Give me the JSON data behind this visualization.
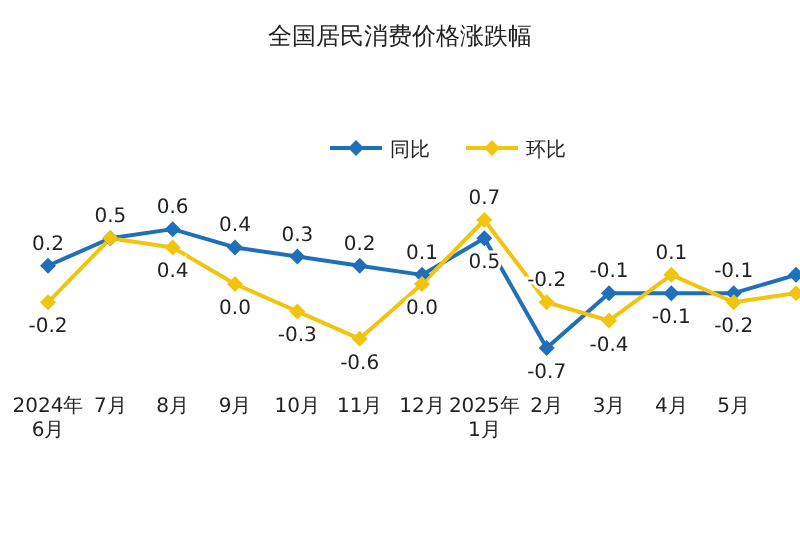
{
  "chart_data": {
    "type": "line",
    "title": "全国居民消费价格涨跌幅",
    "categories": [
      "2024年\n6月",
      "7月",
      "8月",
      "9月",
      "10月",
      "11月",
      "12月",
      "2025年\n1月",
      "2月",
      "3月",
      "4月",
      "5月",
      null
    ],
    "series": [
      {
        "name": "同比",
        "color": "#1f70b8",
        "values": [
          0.2,
          0.5,
          0.6,
          0.4,
          0.3,
          0.2,
          0.1,
          0.5,
          -0.7,
          -0.1,
          -0.1,
          -0.1,
          0.1
        ],
        "value_labels": [
          "0.2",
          "0.5",
          "0.6",
          "0.4",
          "0.3",
          "0.2",
          "0.1",
          "0.5",
          "-0.7",
          "-0.1",
          "-0.1",
          "-0.1",
          null
        ]
      },
      {
        "name": "环比",
        "color": "#f2c40f",
        "values": [
          -0.2,
          0.5,
          0.4,
          0.0,
          -0.3,
          -0.6,
          0.0,
          0.7,
          -0.2,
          -0.4,
          0.1,
          -0.2,
          -0.1
        ],
        "value_labels": [
          "-0.2",
          null,
          "0.4",
          "0.0",
          "-0.3",
          "-0.6",
          "0.0",
          "0.7",
          "-0.2",
          "-0.4",
          "0.1",
          "-0.2",
          null
        ]
      }
    ],
    "marker": "diamond",
    "legend": "top"
  }
}
